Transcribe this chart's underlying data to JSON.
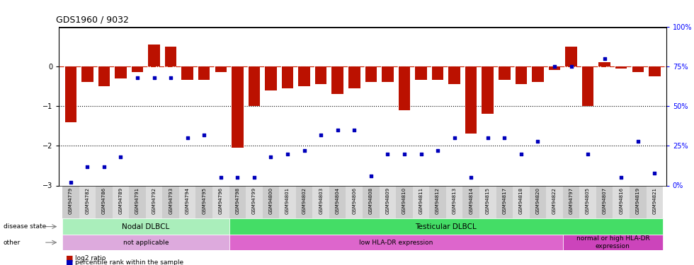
{
  "title": "GDS1960 / 9032",
  "samples": [
    "GSM94779",
    "GSM94782",
    "GSM94786",
    "GSM94789",
    "GSM94791",
    "GSM94792",
    "GSM94793",
    "GSM94794",
    "GSM94795",
    "GSM94796",
    "GSM94798",
    "GSM94799",
    "GSM94800",
    "GSM94801",
    "GSM94802",
    "GSM94803",
    "GSM94804",
    "GSM94806",
    "GSM94808",
    "GSM94809",
    "GSM94810",
    "GSM94811",
    "GSM94812",
    "GSM94813",
    "GSM94814",
    "GSM94815",
    "GSM94817",
    "GSM94818",
    "GSM94820",
    "GSM94822",
    "GSM94797",
    "GSM94805",
    "GSM94807",
    "GSM94816",
    "GSM94819",
    "GSM94821"
  ],
  "log2_ratio": [
    -1.4,
    -0.4,
    -0.5,
    -0.3,
    -0.15,
    0.55,
    0.5,
    -0.35,
    -0.35,
    -0.15,
    -2.05,
    -1.0,
    -0.6,
    -0.55,
    -0.5,
    -0.45,
    -0.7,
    -0.55,
    -0.4,
    -0.4,
    -1.1,
    -0.35,
    -0.35,
    -0.45,
    -1.7,
    -1.2,
    -0.35,
    -0.45,
    -0.4,
    -0.1,
    0.5,
    -1.0,
    0.1,
    -0.05,
    -0.15,
    -0.25
  ],
  "percentile_rank": [
    2,
    12,
    12,
    18,
    68,
    68,
    68,
    30,
    32,
    5,
    5,
    5,
    18,
    20,
    22,
    32,
    35,
    35,
    6,
    20,
    20,
    20,
    22,
    30,
    5,
    30,
    30,
    20,
    28,
    75,
    75,
    20,
    80,
    5,
    28,
    8
  ],
  "ylim_left": [
    -3.0,
    1.0
  ],
  "ylim_right": [
    0,
    100
  ],
  "yticks_left": [
    -3,
    -2,
    -1,
    0
  ],
  "yticks_right": [
    0,
    25,
    50,
    75,
    100
  ],
  "ytick_labels_right": [
    "0%",
    "25%",
    "50%",
    "75%",
    "100%"
  ],
  "bar_color": "#bb1100",
  "dot_color": "#0000bb",
  "disease_groups": [
    {
      "label": "Nodal DLBCL",
      "start": 0,
      "end": 9,
      "color": "#aaeebb"
    },
    {
      "label": "Testicular DLBCL",
      "start": 10,
      "end": 35,
      "color": "#44dd66"
    }
  ],
  "other_groups": [
    {
      "label": "not applicable",
      "start": 0,
      "end": 9,
      "color": "#ddaadd"
    },
    {
      "label": "low HLA-DR expression",
      "start": 10,
      "end": 29,
      "color": "#dd66cc"
    },
    {
      "label": "normal or high HLA-DR\nexpression",
      "start": 30,
      "end": 35,
      "color": "#cc44bb"
    }
  ],
  "legend_items": [
    {
      "label": "log2 ratio",
      "color": "#bb1100"
    },
    {
      "label": "percentile rank within the sample",
      "color": "#0000bb"
    }
  ]
}
